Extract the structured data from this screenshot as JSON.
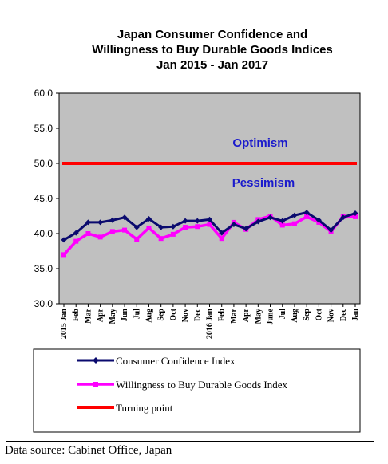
{
  "chart_data": {
    "type": "line",
    "title": [
      "Japan Consumer Confidence and",
      "Willingness to Buy Durable Goods Indices",
      "Jan 2015 - Jan 2017"
    ],
    "categories": [
      "2015 Jan",
      "Feb",
      "Mar",
      "Apr",
      "May",
      "Jun",
      "Jul",
      "Aug",
      "Sep",
      "Oct",
      "Nov",
      "Dec",
      "2016 Jan",
      "Feb",
      "Mar",
      "Apr",
      "May",
      "June",
      "Jul",
      "Aug",
      "Sep",
      "Oct",
      "Nov",
      "Dec",
      "Jan"
    ],
    "ylim": [
      30.0,
      60.0
    ],
    "yticks": [
      "60.0",
      "55.0",
      "50.0",
      "45.0",
      "40.0",
      "35.0",
      "30.0"
    ],
    "ytick_values": [
      60,
      55,
      50,
      45,
      40,
      35,
      30
    ],
    "series": [
      {
        "name": "Consumer Confidence Index",
        "color": "#0a0a6e",
        "values": [
          39.1,
          40.1,
          41.6,
          41.6,
          41.9,
          42.3,
          40.9,
          42.1,
          40.9,
          41.0,
          41.8,
          41.8,
          42.0,
          40.1,
          41.3,
          40.7,
          41.7,
          42.3,
          41.8,
          42.6,
          43.0,
          41.9,
          40.5,
          42.3,
          42.9
        ]
      },
      {
        "name": "Willingness to Buy Durable Goods Index",
        "color": "#ff00ff",
        "values": [
          37.0,
          38.9,
          40.0,
          39.5,
          40.3,
          40.5,
          39.2,
          40.8,
          39.3,
          39.9,
          40.9,
          41.0,
          41.3,
          39.3,
          41.6,
          40.6,
          42.0,
          42.5,
          41.2,
          41.4,
          42.4,
          41.6,
          40.3,
          42.4,
          42.4
        ]
      },
      {
        "name": "Turning point",
        "color": "#ff0000",
        "values": [
          50,
          50,
          50,
          50,
          50,
          50,
          50,
          50,
          50,
          50,
          50,
          50,
          50,
          50,
          50,
          50,
          50,
          50,
          50,
          50,
          50,
          50,
          50,
          50,
          50
        ]
      }
    ],
    "annotations": {
      "optimism": "Optimism",
      "pessimism": "Pessimism"
    },
    "plot_background": "#c0c0c0",
    "grid": false,
    "legend_position": "bottom"
  },
  "source": "Data source: Cabinet Office, Japan"
}
